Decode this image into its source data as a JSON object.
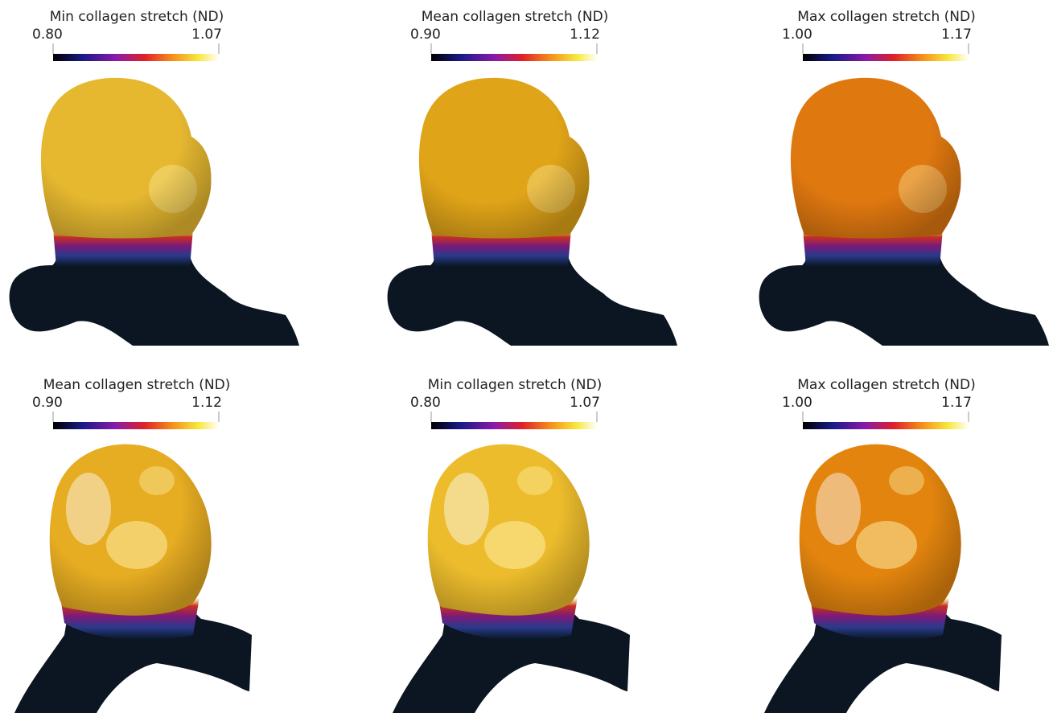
{
  "panels": [
    {
      "title": "Min collagen stretch (ND)",
      "min_label": "0.80",
      "max_label": "1.07"
    },
    {
      "title": "Mean collagen stretch (ND)",
      "min_label": "0.90",
      "max_label": "1.12"
    },
    {
      "title": "Max collagen stretch (ND)",
      "min_label": "1.00",
      "max_label": "1.17"
    },
    {
      "title": "Mean collagen stretch (ND)",
      "min_label": "0.90",
      "max_label": "1.12"
    },
    {
      "title": "Min collagen stretch (ND)",
      "min_label": "0.80",
      "max_label": "1.07"
    },
    {
      "title": "Max collagen stretch (ND)",
      "min_label": "1.00",
      "max_label": "1.17"
    }
  ]
}
